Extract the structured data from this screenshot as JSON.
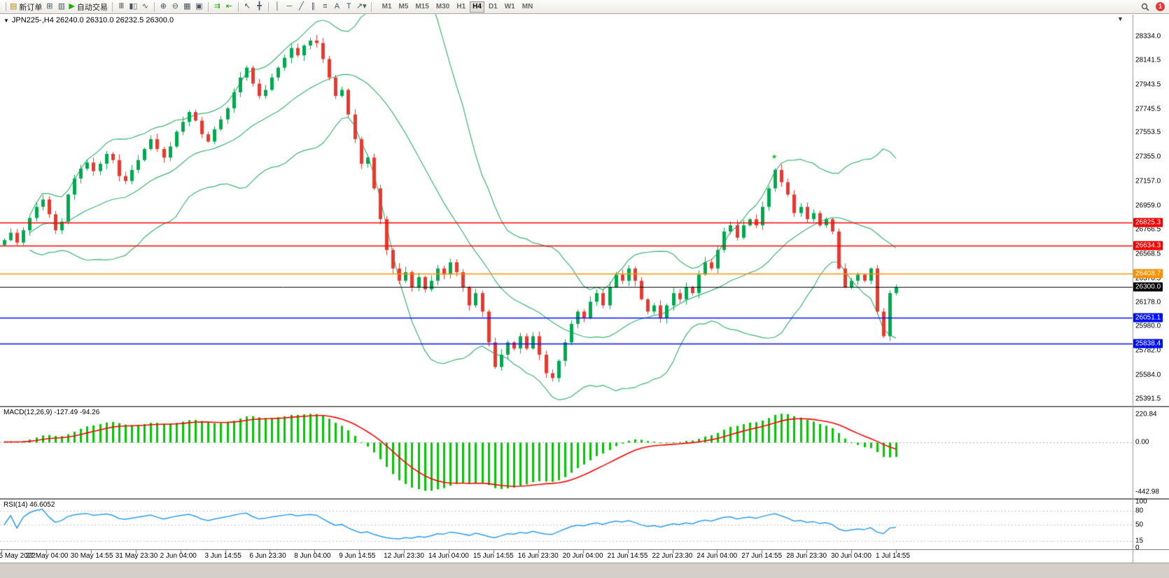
{
  "toolbar": {
    "items": [
      {
        "name": "new-order-button",
        "glyph": "▤",
        "glyph_color": "#b8860b",
        "label": "新订单"
      },
      {
        "name": "charts-grid-button",
        "glyph": "⊞"
      },
      {
        "name": "profile-button",
        "glyph": "▥"
      },
      {
        "name": "autotrading-button",
        "glyph": "▶",
        "glyph_color": "#1faa00",
        "label": "自动交易"
      },
      {
        "type": "sep"
      },
      {
        "name": "bar-chart-button",
        "glyph": "Ⅲ"
      },
      {
        "name": "candlestick-chart-button",
        "glyph": "▮▯"
      },
      {
        "name": "line-chart-button",
        "glyph": "∿"
      },
      {
        "type": "sep"
      },
      {
        "name": "zoom-in-button",
        "glyph": "⊕"
      },
      {
        "name": "zoom-out-button",
        "glyph": "⊖"
      },
      {
        "name": "tile-windows-button",
        "glyph": "▦"
      },
      {
        "name": "cascade-windows-button",
        "glyph": "▣"
      },
      {
        "type": "sep"
      },
      {
        "name": "auto-scroll-button",
        "glyph": "⇉",
        "glyph_color": "#1faa00"
      },
      {
        "name": "chart-shift-button",
        "glyph": "⇤",
        "glyph_color": "#1faa00"
      },
      {
        "type": "sep"
      },
      {
        "name": "cursor-button",
        "glyph": "↖"
      },
      {
        "name": "crosshair-button",
        "glyph": "╋"
      },
      {
        "type": "sep"
      },
      {
        "name": "vertical-line-button",
        "glyph": "│"
      },
      {
        "name": "horizontal-line-button",
        "glyph": "─"
      },
      {
        "name": "trendline-button",
        "glyph": "╱"
      },
      {
        "name": "channel-button",
        "glyph": "∥"
      },
      {
        "name": "fibonacci-button",
        "glyph": "≡"
      },
      {
        "name": "text-button",
        "glyph": "A"
      },
      {
        "name": "text-label-button",
        "glyph": "T"
      },
      {
        "name": "arrow-objects-button",
        "glyph": "↗▾"
      },
      {
        "type": "sep"
      }
    ],
    "timeframes": [
      "M1",
      "M5",
      "M15",
      "M30",
      "H1",
      "H4",
      "D1",
      "W1",
      "MN"
    ],
    "active_timeframe": "H4",
    "notification_badge": "1"
  },
  "chart": {
    "info_line": "JPN225-,H4 26240.0 26310.0 26232.5 26300.0",
    "macd_line": "MACD(12,26,9) -127.49 -94.26",
    "rsi_line": "RSI(14) 46.6052",
    "collapse_glyph": "▼",
    "shift_marker_glyph": "▼"
  },
  "chart_data": {
    "type": "candlestick",
    "symbol": "JPN225-",
    "timeframe": "H4",
    "ohlc": {
      "open": 26240.0,
      "high": 26310.0,
      "low": 26232.5,
      "close": 26300.0
    },
    "y_range": [
      25391.5,
      28334.0
    ],
    "y_axis_labels": [
      "28334.0",
      "28141.5",
      "27943.5",
      "27745.5",
      "27553.5",
      "27355.0",
      "27157.0",
      "26959.0",
      "26766.5",
      "26568.5",
      "26370.5",
      "26178.0",
      "25980.0",
      "25782.0",
      "25584.0",
      "25391.5"
    ],
    "x_labels": [
      "25 May 2022",
      "27 May 04:00",
      "30 May 14:55",
      "31 May 23:30",
      "2 Jun 04:00",
      "3 Jun 14:55",
      "6 Jun 23:30",
      "8 Jun 04:00",
      "9 Jun 14:55",
      "12 Jun 23:30",
      "14 Jun 04:00",
      "15 Jun 14:55",
      "16 Jun 23:30",
      "20 Jun 04:00",
      "21 Jun 14:55",
      "22 Jun 23:30",
      "24 Jun 04:00",
      "27 Jun 14:55",
      "28 Jun 23:30",
      "30 Jun 04:00",
      "1 Jul 14:55"
    ],
    "closes": [
      26680,
      26740,
      26660,
      26760,
      26860,
      26950,
      27010,
      26890,
      26760,
      26830,
      27050,
      27180,
      27260,
      27310,
      27240,
      27300,
      27380,
      27330,
      27200,
      27160,
      27250,
      27330,
      27420,
      27500,
      27420,
      27350,
      27440,
      27560,
      27640,
      27720,
      27650,
      27540,
      27480,
      27580,
      27660,
      27750,
      27880,
      28000,
      28080,
      27950,
      27850,
      27900,
      28000,
      28080,
      28160,
      28240,
      28180,
      28260,
      28300,
      28280,
      28150,
      28000,
      27850,
      27900,
      27700,
      27500,
      27300,
      27350,
      27100,
      26850,
      26600,
      26450,
      26350,
      26420,
      26300,
      26380,
      26280,
      26350,
      26450,
      26400,
      26500,
      26420,
      26300,
      26150,
      26250,
      26100,
      25850,
      25650,
      25750,
      25850,
      25800,
      25900,
      25800,
      25900,
      25750,
      25600,
      25560,
      25700,
      25850,
      26000,
      26100,
      26050,
      26180,
      26250,
      26150,
      26300,
      26400,
      26350,
      26450,
      26350,
      26200,
      26100,
      26150,
      26050,
      26150,
      26250,
      26200,
      26300,
      26250,
      26400,
      26500,
      26450,
      26600,
      26750,
      26800,
      26700,
      26800,
      26850,
      26800,
      26950,
      27100,
      27250,
      27150,
      27050,
      26900,
      26950,
      26850,
      26900,
      26800,
      26850,
      26750,
      26450,
      26300,
      26350,
      26400,
      26350,
      26450,
      26100,
      25900,
      26250,
      26300
    ],
    "horizontal_lines": [
      {
        "price": 26825.3,
        "label": "26825.3",
        "color": "#f60000"
      },
      {
        "price": 26634.3,
        "label": "26634.3",
        "color": "#f60000"
      },
      {
        "price": 26408.7,
        "label": "26408.7",
        "color": "#ff9000"
      },
      {
        "price": 26300.0,
        "label": "26300.0",
        "color": "#000000",
        "current": true
      },
      {
        "price": 26051.1,
        "label": "26051.1",
        "color": "#0010ff"
      },
      {
        "price": 25838.4,
        "label": "25838.4",
        "color": "#0010ff"
      }
    ],
    "bollinger": {
      "period": 20,
      "deviation": 2,
      "color": "#3cb371"
    },
    "signal_marker": {
      "candle_index": 121,
      "price": 27340,
      "glyph": "*",
      "color": "#00cc22"
    },
    "candle_up_color": "#00a94f",
    "candle_down_color": "#e8392e",
    "macd": {
      "params": [
        12,
        26,
        9
      ],
      "value": -127.49,
      "signal_value": -94.26,
      "axis_labels": [
        "220.84",
        "0.00",
        "-442.98"
      ],
      "histogram_color": "#00c800",
      "signal_color": "#ff0000"
    },
    "rsi": {
      "period": 14,
      "value": 46.6052,
      "axis_labels": [
        "100",
        "80",
        "50",
        "15",
        "0"
      ],
      "levels": [
        80,
        50,
        15
      ],
      "color": "#2d9bf0"
    }
  }
}
